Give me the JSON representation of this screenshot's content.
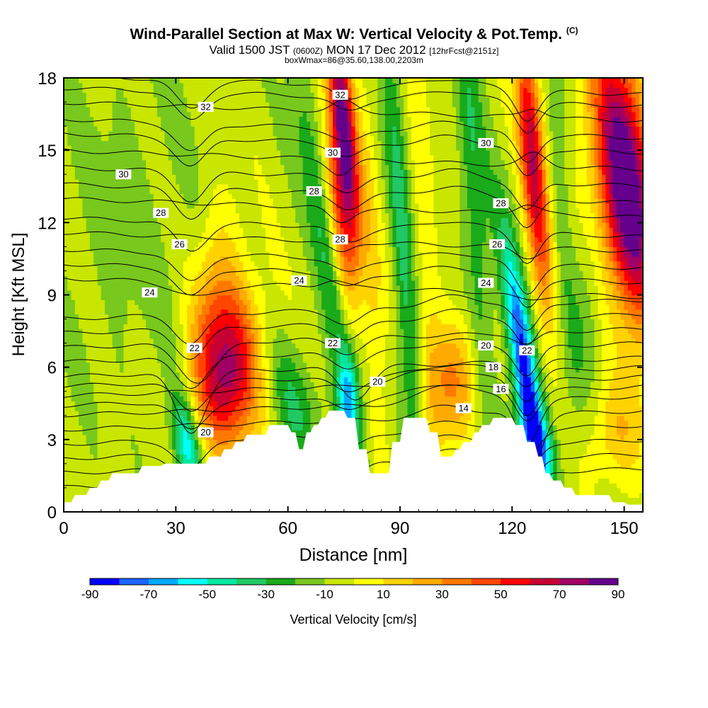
{
  "header": {
    "title": "Wind-Parallel Section at Max W: Vertical Velocity & Pot.Temp.",
    "copyright": "(C)",
    "valid_pre": "Valid 1500 JST",
    "valid_z": "(0600Z)",
    "valid_date": "MON 17 Dec 2012",
    "fcst": "[12hrFcst@2151z]",
    "box": "boxWmax=86@35.60,138.00,2203m"
  },
  "chart_data": {
    "type": "heatmap",
    "xlabel": "Distance [nm]",
    "ylabel": "Height [Kft MSL]",
    "xlim": [
      0,
      155
    ],
    "ylim": [
      0,
      18
    ],
    "x_ticks": [
      0,
      30,
      60,
      90,
      120,
      150
    ],
    "y_ticks": [
      0,
      3,
      6,
      9,
      12,
      15,
      18
    ],
    "colorbar": {
      "label": "Vertical Velocity [cm/s]",
      "tick_labels": [
        "-90",
        "-70",
        "-50",
        "-30",
        "-10",
        "10",
        "30",
        "50",
        "70",
        "90"
      ],
      "bounds": [
        -90,
        -80,
        -70,
        -60,
        -50,
        -40,
        -30,
        -20,
        -10,
        0,
        10,
        20,
        30,
        40,
        50,
        60,
        70,
        80,
        90
      ],
      "colors": [
        "#0000ff",
        "#1a66ff",
        "#00a8ff",
        "#00ffff",
        "#00e8a0",
        "#22c864",
        "#1aaa1a",
        "#78c81e",
        "#c8e600",
        "#ffff00",
        "#ffd200",
        "#ffaa00",
        "#ff7800",
        "#ff4600",
        "#ff0000",
        "#c80032",
        "#a00064",
        "#64008c"
      ]
    },
    "terrain": [
      [
        0,
        0.4
      ],
      [
        2,
        0.4
      ],
      [
        3,
        0.7
      ],
      [
        6,
        0.7
      ],
      [
        7,
        1.0
      ],
      [
        9,
        1.0
      ],
      [
        10,
        1.3
      ],
      [
        12,
        1.3
      ],
      [
        13,
        1.6
      ],
      [
        20,
        1.6
      ],
      [
        21,
        1.9
      ],
      [
        26,
        1.9
      ],
      [
        27,
        2.0
      ],
      [
        38,
        2.0
      ],
      [
        39,
        2.3
      ],
      [
        42,
        2.3
      ],
      [
        43,
        2.6
      ],
      [
        45,
        2.6
      ],
      [
        46,
        2.9
      ],
      [
        48,
        2.9
      ],
      [
        49,
        3.2
      ],
      [
        54,
        3.2
      ],
      [
        55,
        3.6
      ],
      [
        60,
        3.6
      ],
      [
        61,
        3.3
      ],
      [
        62,
        3.3
      ],
      [
        63,
        2.6
      ],
      [
        64,
        2.6
      ],
      [
        65,
        3.3
      ],
      [
        66,
        3.3
      ],
      [
        67,
        3.6
      ],
      [
        68,
        3.6
      ],
      [
        69,
        3.9
      ],
      [
        70,
        3.9
      ],
      [
        71,
        4.2
      ],
      [
        75,
        4.2
      ],
      [
        76,
        3.9
      ],
      [
        78,
        3.9
      ],
      [
        79,
        2.6
      ],
      [
        81,
        2.6
      ],
      [
        82,
        1.6
      ],
      [
        87,
        1.6
      ],
      [
        88,
        2.9
      ],
      [
        90,
        2.9
      ],
      [
        91,
        3.9
      ],
      [
        97,
        3.9
      ],
      [
        98,
        3.3
      ],
      [
        100,
        3.3
      ],
      [
        101,
        2.3
      ],
      [
        104,
        2.3
      ],
      [
        105,
        2.6
      ],
      [
        106,
        2.6
      ],
      [
        107,
        2.9
      ],
      [
        109,
        2.9
      ],
      [
        110,
        3.3
      ],
      [
        111,
        3.3
      ],
      [
        112,
        3.6
      ],
      [
        114,
        3.6
      ],
      [
        115,
        3.9
      ],
      [
        120,
        3.9
      ],
      [
        121,
        3.6
      ],
      [
        123,
        3.6
      ],
      [
        124,
        2.9
      ],
      [
        126,
        2.9
      ],
      [
        127,
        2.3
      ],
      [
        128,
        2.3
      ],
      [
        129,
        1.6
      ],
      [
        130,
        1.6
      ],
      [
        131,
        1.3
      ],
      [
        133,
        1.3
      ],
      [
        134,
        1.0
      ],
      [
        136,
        1.0
      ],
      [
        137,
        0.7
      ],
      [
        146,
        0.7
      ],
      [
        147,
        0.4
      ],
      [
        150,
        0.4
      ],
      [
        151,
        0.3
      ],
      [
        155,
        0.3
      ]
    ],
    "w_features": [
      {
        "x": 0,
        "y": 0,
        "sx": 0,
        "sy": 0,
        "amp": -5,
        "tilt": 0,
        "base": true
      },
      {
        "x": 44,
        "y": 5.8,
        "sx": 6,
        "sy": 2.4,
        "amp": 75,
        "tilt": 0.35
      },
      {
        "x": 33,
        "y": 2.8,
        "sx": 2.6,
        "sy": 1.4,
        "amp": -55,
        "tilt": -0.9
      },
      {
        "x": 40,
        "y": 9.0,
        "sx": 4.5,
        "sy": 3.0,
        "amp": 22,
        "tilt": 0.6
      },
      {
        "x": 62,
        "y": 4.5,
        "sx": 4,
        "sy": 2,
        "amp": -25,
        "tilt": -1.2
      },
      {
        "x": 72,
        "y": 9,
        "sx": 2.6,
        "sy": 8,
        "amp": -30,
        "tilt": -1.0
      },
      {
        "x": 75,
        "y": 16,
        "sx": 2.2,
        "sy": 3.5,
        "amp": 90,
        "tilt": -0.6
      },
      {
        "x": 74,
        "y": 12,
        "sx": 2.4,
        "sy": 3,
        "amp": 45,
        "tilt": -0.6
      },
      {
        "x": 76,
        "y": 4.5,
        "sx": 2,
        "sy": 1.5,
        "amp": -45,
        "tilt": 0
      },
      {
        "x": 83,
        "y": 9,
        "sx": 2,
        "sy": 8,
        "amp": 15,
        "tilt": -0.3
      },
      {
        "x": 91,
        "y": 10,
        "sx": 2,
        "sy": 10,
        "amp": -28,
        "tilt": -0.4
      },
      {
        "x": 97,
        "y": 11,
        "sx": 2,
        "sy": 9,
        "amp": 12,
        "tilt": -0.3
      },
      {
        "x": 104,
        "y": 5.5,
        "sx": 5,
        "sy": 1.8,
        "amp": 35,
        "tilt": 0.2
      },
      {
        "x": 110,
        "y": 13,
        "sx": 2.5,
        "sy": 7,
        "amp": -25,
        "tilt": -0.4
      },
      {
        "x": 123,
        "y": 6.2,
        "sx": 2.4,
        "sy": 3.6,
        "amp": -80,
        "tilt": -0.9
      },
      {
        "x": 127,
        "y": 2.8,
        "sx": 3,
        "sy": 1.3,
        "amp": -45,
        "tilt": -1.2
      },
      {
        "x": 125,
        "y": 15.5,
        "sx": 2.3,
        "sy": 3.5,
        "amp": 65,
        "tilt": -0.5
      },
      {
        "x": 128,
        "y": 11,
        "sx": 2.5,
        "sy": 3,
        "amp": 25,
        "tilt": -0.6
      },
      {
        "x": 133,
        "y": 13,
        "sx": 2,
        "sy": 6,
        "amp": -15,
        "tilt": -0.4
      },
      {
        "x": 149,
        "y": 14.5,
        "sx": 5.5,
        "sy": 4,
        "amp": 80,
        "tilt": -0.5
      },
      {
        "x": 153,
        "y": 11.5,
        "sx": 4,
        "sy": 3,
        "amp": 40,
        "tilt": -0.5
      },
      {
        "x": 140,
        "y": 8.5,
        "sx": 3,
        "sy": 2.5,
        "amp": -15,
        "tilt": 0
      },
      {
        "x": 148,
        "y": 3.2,
        "sx": 6,
        "sy": 1.6,
        "amp": 22,
        "tilt": 0.3
      },
      {
        "x": 18,
        "y": 12,
        "sx": 15,
        "sy": 6,
        "amp": -8,
        "tilt": 0
      }
    ],
    "theta_contours": [
      {
        "label": "14",
        "base": 3.8,
        "bumps": [
          [
            103,
            0.5,
            6
          ],
          [
            125,
            -2.2,
            3
          ]
        ]
      },
      {
        "label": "16",
        "base": 4.4,
        "bumps": [
          [
            104,
            0.8,
            7
          ],
          [
            124,
            -1.8,
            3
          ]
        ]
      },
      {
        "label": "18",
        "base": 5.2,
        "bumps": [
          [
            100,
            0.6,
            9
          ],
          [
            124,
            -1.4,
            3
          ]
        ]
      },
      {
        "label": "20",
        "base": 6.0,
        "bumps": [
          [
            34,
            -2.5,
            4
          ],
          [
            78,
            -1.3,
            4
          ],
          [
            124,
            -1.0,
            3
          ]
        ]
      },
      {
        "label": "22",
        "base": 7.2,
        "bumps": [
          [
            36,
            -1.6,
            5
          ],
          [
            76,
            -0.6,
            4
          ],
          [
            124,
            -0.5,
            3
          ]
        ]
      },
      {
        "label": "24",
        "base": 9.3,
        "bumps": [
          [
            36,
            -0.6,
            6
          ],
          [
            72,
            0.3,
            3
          ],
          [
            124,
            -0.3,
            4
          ]
        ]
      },
      {
        "label": "26",
        "base": 11.2,
        "bumps": [
          [
            74,
            -0.5,
            3
          ],
          [
            124,
            -0.4,
            3
          ]
        ]
      },
      {
        "label": "28",
        "base": 12.6,
        "bumps": [
          [
            74,
            -0.6,
            3
          ],
          [
            124,
            0.4,
            3
          ]
        ]
      },
      {
        "label": "30",
        "base": 14.6,
        "bumps": [
          [
            74,
            -0.6,
            3
          ],
          [
            126,
            0.5,
            3
          ]
        ]
      },
      {
        "label": "32",
        "base": 16.6,
        "bumps": [
          [
            75,
            0.4,
            3
          ],
          [
            126,
            0.4,
            3
          ]
        ]
      }
    ],
    "contour_labels": [
      {
        "text": "32",
        "x": 38,
        "y": 16.8
      },
      {
        "text": "30",
        "x": 16,
        "y": 14.0
      },
      {
        "text": "28",
        "x": 26,
        "y": 12.4
      },
      {
        "text": "26",
        "x": 31,
        "y": 11.1
      },
      {
        "text": "24",
        "x": 23,
        "y": 9.1
      },
      {
        "text": "22",
        "x": 35,
        "y": 6.8
      },
      {
        "text": "20",
        "x": 38,
        "y": 3.3
      },
      {
        "text": "32",
        "x": 74,
        "y": 17.3
      },
      {
        "text": "30",
        "x": 72,
        "y": 14.9
      },
      {
        "text": "28",
        "x": 67,
        "y": 13.3
      },
      {
        "text": "28",
        "x": 74,
        "y": 11.3
      },
      {
        "text": "24",
        "x": 63,
        "y": 9.6
      },
      {
        "text": "22",
        "x": 72,
        "y": 7.0
      },
      {
        "text": "20",
        "x": 84,
        "y": 5.4
      },
      {
        "text": "30",
        "x": 113,
        "y": 15.3
      },
      {
        "text": "28",
        "x": 117,
        "y": 12.8
      },
      {
        "text": "26",
        "x": 116,
        "y": 11.1
      },
      {
        "text": "24",
        "x": 113,
        "y": 9.5
      },
      {
        "text": "20",
        "x": 113,
        "y": 6.9
      },
      {
        "text": "18",
        "x": 115,
        "y": 6.0
      },
      {
        "text": "16",
        "x": 117,
        "y": 5.1
      },
      {
        "text": "14",
        "x": 107,
        "y": 4.3
      },
      {
        "text": "22",
        "x": 124,
        "y": 6.7
      }
    ]
  }
}
